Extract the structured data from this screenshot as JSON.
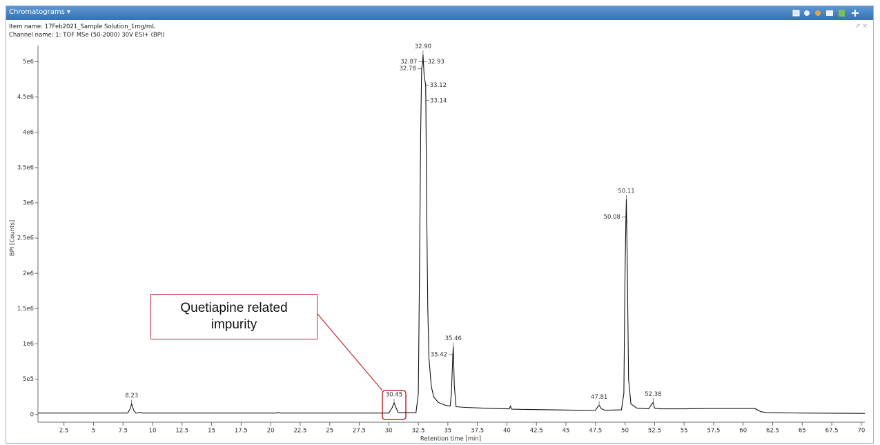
{
  "window": {
    "tab": "Chromatograms",
    "item_name": "Item name: 17Feb2021_Sample Solution_1mg/mL",
    "channel_name": "Channel name: 1: TOF MSe (50-2000) 30V ESI+ (BPI)"
  },
  "chart_data": {
    "type": "line",
    "xlabel": "Retention time [min]",
    "ylabel": "BPI [Counts]",
    "color": "#111111",
    "x": [
      0.3,
      5,
      7.9,
      8.1,
      8.23,
      8.4,
      8.6,
      8.9,
      9.0,
      9.1,
      20.5,
      20.6,
      20.8,
      30.0,
      30.3,
      30.45,
      30.6,
      30.8,
      32.3,
      32.5,
      32.6,
      32.7,
      32.78,
      32.87,
      32.9,
      32.93,
      33.0,
      33.12,
      33.14,
      33.2,
      33.3,
      33.4,
      33.6,
      33.8,
      34.2,
      34.8,
      35.2,
      35.3,
      35.42,
      35.46,
      35.55,
      35.7,
      36.5,
      38,
      40,
      40.2,
      40.3,
      40.4,
      42,
      44,
      46,
      47.5,
      47.7,
      47.81,
      48.0,
      48.3,
      49.7,
      49.9,
      50.0,
      50.08,
      50.11,
      50.2,
      50.3,
      50.5,
      51,
      52,
      52.2,
      52.38,
      52.5,
      53,
      55,
      57,
      59,
      61,
      61.5,
      62,
      65,
      70.3
    ],
    "values": [
      20000,
      20000,
      20000,
      80000,
      150000,
      60000,
      20000,
      25000,
      30000,
      20000,
      20000,
      30000,
      20000,
      20000,
      100000,
      165000,
      100000,
      25000,
      25000,
      300000,
      2000000,
      4000000,
      4900000,
      5000000,
      5100000,
      5000000,
      4800000,
      4670000,
      4450000,
      3000000,
      1500000,
      800000,
      400000,
      250000,
      170000,
      130000,
      120000,
      300000,
      850000,
      960000,
      400000,
      110000,
      100000,
      90000,
      80000,
      80000,
      120000,
      75000,
      70000,
      65000,
      60000,
      62000,
      110000,
      130000,
      80000,
      60000,
      65000,
      300000,
      2000000,
      2800000,
      3050000,
      2000000,
      500000,
      150000,
      90000,
      80000,
      130000,
      170000,
      90000,
      80000,
      80000,
      85000,
      85000,
      85000,
      40000,
      25000,
      20000,
      15000
    ],
    "xlim": [
      0.3,
      70.3
    ],
    "ylim": [
      -110000,
      5230000
    ],
    "xticks": [
      2.5,
      5,
      7.5,
      10,
      12.5,
      15,
      17.5,
      20,
      22.5,
      25,
      27.5,
      30,
      32.5,
      35,
      37.5,
      40,
      42.5,
      45,
      47.5,
      50,
      52.5,
      55,
      57.5,
      60,
      62.5,
      65,
      67.5,
      70
    ],
    "yticks": [
      0,
      {
        "value": 500000,
        "label": "5e5"
      },
      {
        "value": 1000000,
        "label": "1e6"
      },
      {
        "value": 1500000,
        "label": "1.5e6"
      },
      {
        "value": 2000000,
        "label": "2e6"
      },
      {
        "value": 2500000,
        "label": "2.5e6"
      },
      {
        "value": 3000000,
        "label": "3e6"
      },
      {
        "value": 3500000,
        "label": "3.5e6"
      },
      {
        "value": 4000000,
        "label": "4e6"
      },
      {
        "value": 4500000,
        "label": "4.5e6"
      },
      {
        "value": 5000000,
        "label": "5e6"
      }
    ],
    "peak_labels": [
      {
        "x": 8.23,
        "y": 150000,
        "label": "8.23"
      },
      {
        "x": 30.45,
        "y": 165000,
        "label": "30.45"
      },
      {
        "x": 32.78,
        "y": 4900000,
        "label": "32.78"
      },
      {
        "x": 32.87,
        "y": 5000000,
        "label": "32.87"
      },
      {
        "x": 32.9,
        "y": 5100000,
        "label": "32.90"
      },
      {
        "x": 32.93,
        "y": 5000000,
        "label": "32.93"
      },
      {
        "x": 33.12,
        "y": 4670000,
        "label": "33.12"
      },
      {
        "x": 33.14,
        "y": 4450000,
        "label": "33.14"
      },
      {
        "x": 35.42,
        "y": 850000,
        "label": "35.42"
      },
      {
        "x": 35.46,
        "y": 960000,
        "label": "35.46"
      },
      {
        "x": 47.81,
        "y": 130000,
        "label": "47.81"
      },
      {
        "x": 50.08,
        "y": 2800000,
        "label": "50.08"
      },
      {
        "x": 50.11,
        "y": 3050000,
        "label": "50.11"
      },
      {
        "x": 52.38,
        "y": 170000,
        "label": "52.38"
      }
    ],
    "annotation": "Quetiapine related impurity"
  }
}
